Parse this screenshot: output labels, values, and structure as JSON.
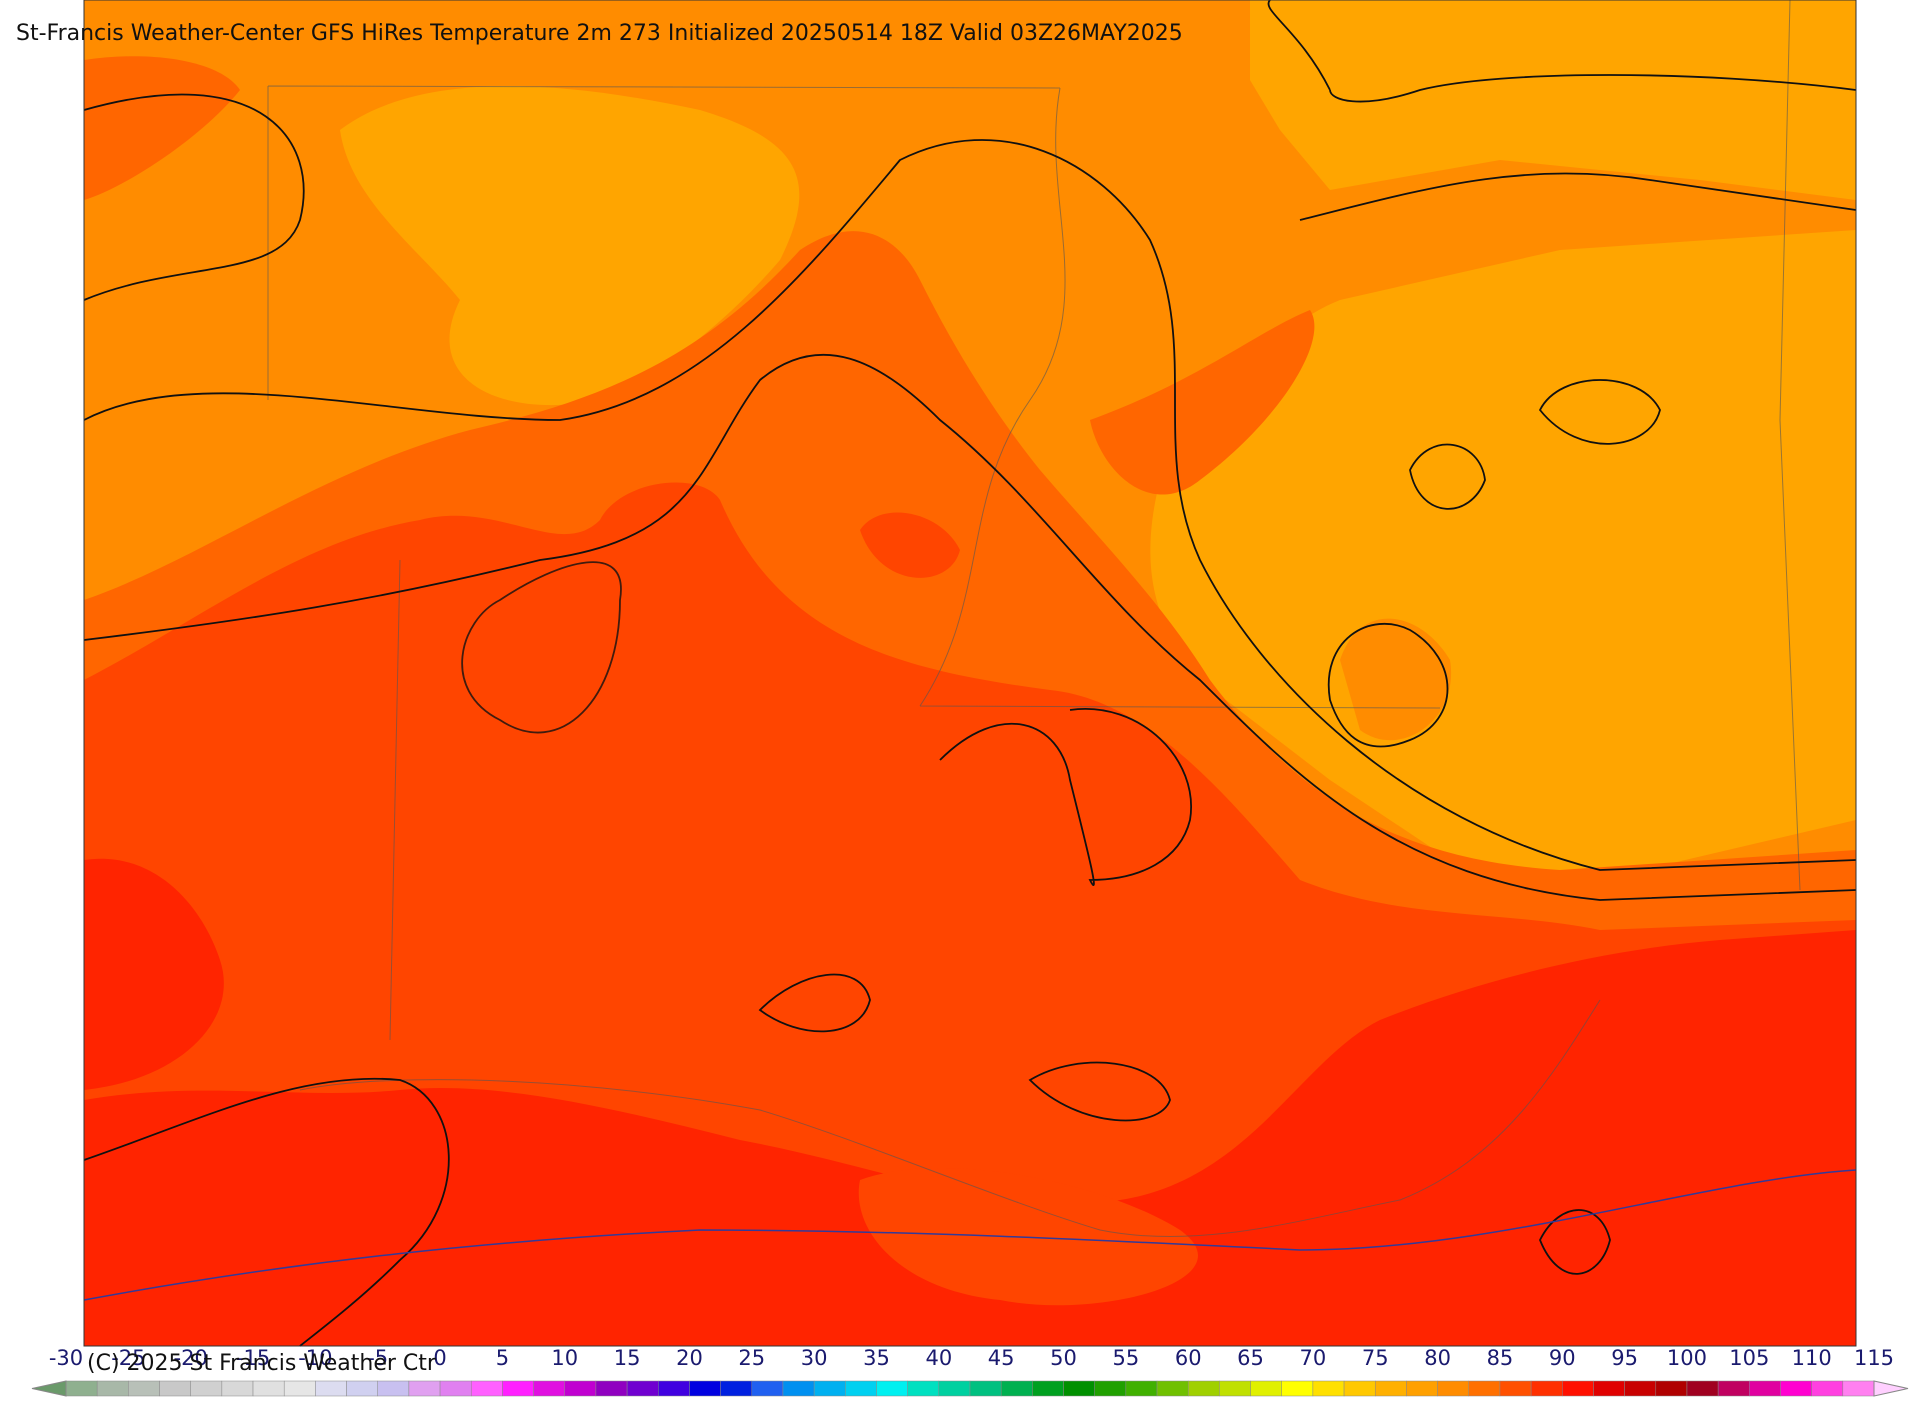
{
  "title": "St-Francis Weather-Center GFS HiRes Temperature 2m  273 Initialized 20250514 18Z Valid 03Z26MAY2025",
  "copyright": "(C) 2025 St Francis Weather Ctr",
  "colorbar": {
    "labels": [
      -30,
      -25,
      -20,
      -15,
      -10,
      -5,
      0,
      5,
      10,
      15,
      20,
      25,
      30,
      35,
      40,
      45,
      50,
      55,
      60,
      65,
      70,
      75,
      80,
      85,
      90,
      95,
      100,
      105,
      110,
      115
    ]
  }
}
